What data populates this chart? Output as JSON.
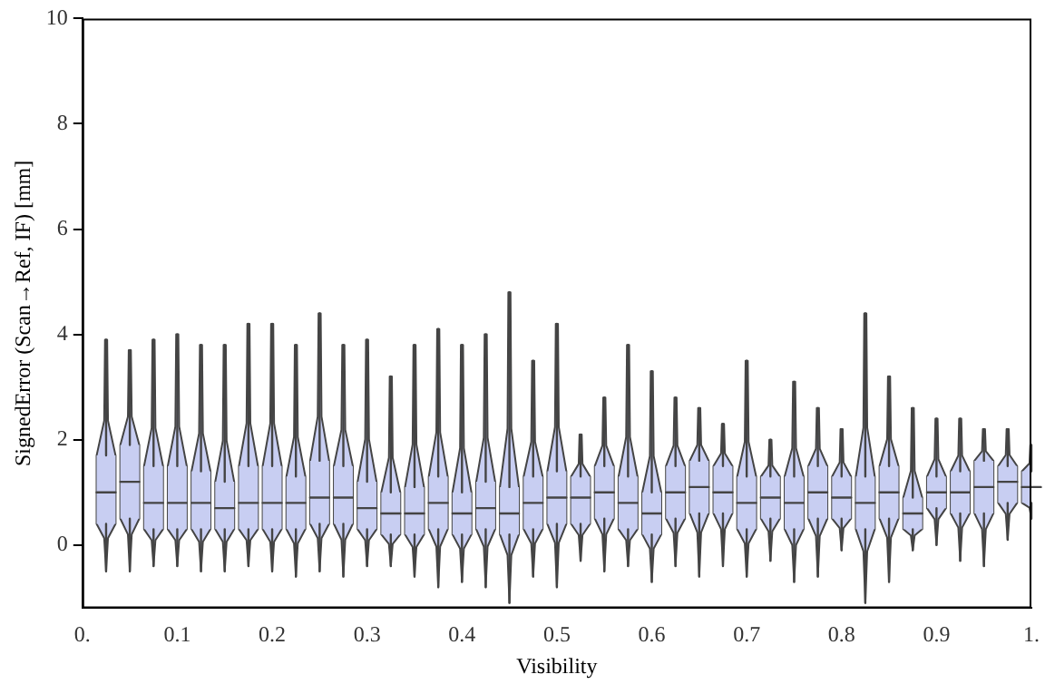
{
  "chart_data": {
    "type": "box",
    "xlabel": "Visibility",
    "ylabel": "SignedError (Scan→Ref, IF) [mm]",
    "color": "#c8cef2",
    "x": [
      0.025,
      0.05,
      0.075,
      0.1,
      0.125,
      0.15,
      0.175,
      0.2,
      0.225,
      0.25,
      0.275,
      0.3,
      0.325,
      0.35,
      0.375,
      0.4,
      0.425,
      0.45,
      0.475,
      0.5,
      0.525,
      0.55,
      0.575,
      0.6,
      0.625,
      0.65,
      0.675,
      0.7,
      0.725,
      0.75,
      0.775,
      0.8,
      0.825,
      0.85,
      0.875,
      0.9,
      0.925,
      0.95,
      0.975,
      1.0
    ],
    "boxes": [
      {
        "low": -0.5,
        "q1": 0.4,
        "median": 1.0,
        "q3": 1.7,
        "high": 3.9
      },
      {
        "low": -0.5,
        "q1": 0.5,
        "median": 1.2,
        "q3": 1.9,
        "high": 3.7
      },
      {
        "low": -0.4,
        "q1": 0.3,
        "median": 0.8,
        "q3": 1.5,
        "high": 3.9
      },
      {
        "low": -0.4,
        "q1": 0.3,
        "median": 0.8,
        "q3": 1.5,
        "high": 4.0
      },
      {
        "low": -0.5,
        "q1": 0.3,
        "median": 0.8,
        "q3": 1.4,
        "high": 3.8
      },
      {
        "low": -0.5,
        "q1": 0.3,
        "median": 0.7,
        "q3": 1.2,
        "high": 3.8
      },
      {
        "low": -0.4,
        "q1": 0.3,
        "median": 0.8,
        "q3": 1.5,
        "high": 4.2
      },
      {
        "low": -0.5,
        "q1": 0.3,
        "median": 0.8,
        "q3": 1.5,
        "high": 4.2
      },
      {
        "low": -0.6,
        "q1": 0.3,
        "median": 0.8,
        "q3": 1.3,
        "high": 3.8
      },
      {
        "low": -0.5,
        "q1": 0.4,
        "median": 0.9,
        "q3": 1.6,
        "high": 4.4
      },
      {
        "low": -0.6,
        "q1": 0.4,
        "median": 0.9,
        "q3": 1.5,
        "high": 3.8
      },
      {
        "low": -0.4,
        "q1": 0.3,
        "median": 0.7,
        "q3": 1.2,
        "high": 3.9
      },
      {
        "low": -0.4,
        "q1": 0.2,
        "median": 0.6,
        "q3": 1.0,
        "high": 3.2
      },
      {
        "low": -0.6,
        "q1": 0.2,
        "median": 0.6,
        "q3": 1.1,
        "high": 3.8
      },
      {
        "low": -0.8,
        "q1": 0.3,
        "median": 0.8,
        "q3": 1.3,
        "high": 4.1
      },
      {
        "low": -0.7,
        "q1": 0.2,
        "median": 0.6,
        "q3": 1.0,
        "high": 3.8
      },
      {
        "low": -0.8,
        "q1": 0.3,
        "median": 0.7,
        "q3": 1.2,
        "high": 4.0
      },
      {
        "low": -1.1,
        "q1": 0.2,
        "median": 0.6,
        "q3": 1.1,
        "high": 4.8
      },
      {
        "low": -0.6,
        "q1": 0.3,
        "median": 0.8,
        "q3": 1.3,
        "high": 3.5
      },
      {
        "low": -0.8,
        "q1": 0.4,
        "median": 0.9,
        "q3": 1.4,
        "high": 4.2
      },
      {
        "low": -0.3,
        "q1": 0.4,
        "median": 0.9,
        "q3": 1.3,
        "high": 2.1
      },
      {
        "low": -0.5,
        "q1": 0.5,
        "median": 1.0,
        "q3": 1.5,
        "high": 2.8
      },
      {
        "low": -0.4,
        "q1": 0.3,
        "median": 0.8,
        "q3": 1.3,
        "high": 3.8
      },
      {
        "low": -0.7,
        "q1": 0.2,
        "median": 0.6,
        "q3": 1.0,
        "high": 3.3
      },
      {
        "low": -0.4,
        "q1": 0.5,
        "median": 1.0,
        "q3": 1.5,
        "high": 2.8
      },
      {
        "low": -0.6,
        "q1": 0.6,
        "median": 1.1,
        "q3": 1.6,
        "high": 2.6
      },
      {
        "low": -0.4,
        "q1": 0.6,
        "median": 1.0,
        "q3": 1.5,
        "high": 2.3
      },
      {
        "low": -0.6,
        "q1": 0.3,
        "median": 0.8,
        "q3": 1.3,
        "high": 3.5
      },
      {
        "low": -0.3,
        "q1": 0.5,
        "median": 0.9,
        "q3": 1.3,
        "high": 2.0
      },
      {
        "low": -0.7,
        "q1": 0.3,
        "median": 0.8,
        "q3": 1.3,
        "high": 3.1
      },
      {
        "low": -0.6,
        "q1": 0.5,
        "median": 1.0,
        "q3": 1.5,
        "high": 2.6
      },
      {
        "low": -0.1,
        "q1": 0.5,
        "median": 0.9,
        "q3": 1.3,
        "high": 2.2
      },
      {
        "low": -1.1,
        "q1": 0.3,
        "median": 0.8,
        "q3": 1.3,
        "high": 4.4
      },
      {
        "low": -0.7,
        "q1": 0.5,
        "median": 1.0,
        "q3": 1.5,
        "high": 3.2
      },
      {
        "low": -0.1,
        "q1": 0.3,
        "median": 0.6,
        "q3": 0.9,
        "high": 2.6
      },
      {
        "low": 0.0,
        "q1": 0.7,
        "median": 1.0,
        "q3": 1.3,
        "high": 2.4
      },
      {
        "low": -0.3,
        "q1": 0.6,
        "median": 1.0,
        "q3": 1.4,
        "high": 2.4
      },
      {
        "low": -0.4,
        "q1": 0.6,
        "median": 1.1,
        "q3": 1.6,
        "high": 2.2
      },
      {
        "low": 0.1,
        "q1": 0.8,
        "median": 1.2,
        "q3": 1.5,
        "high": 2.2
      },
      {
        "low": 0.5,
        "q1": 0.8,
        "median": 1.1,
        "q3": 1.4,
        "high": 1.9
      }
    ],
    "xlim": [
      0,
      1
    ],
    "xticks": [
      {
        "value": 0,
        "label": "0."
      },
      0.1,
      0.2,
      0.3,
      0.4,
      0.5,
      0.6,
      0.7,
      0.8,
      0.9,
      {
        "value": 1,
        "label": "1."
      }
    ],
    "ylim": [
      -1.2,
      10
    ],
    "yticks": [
      0,
      2,
      4,
      6,
      8,
      10
    ],
    "grid": false,
    "legend": false
  }
}
